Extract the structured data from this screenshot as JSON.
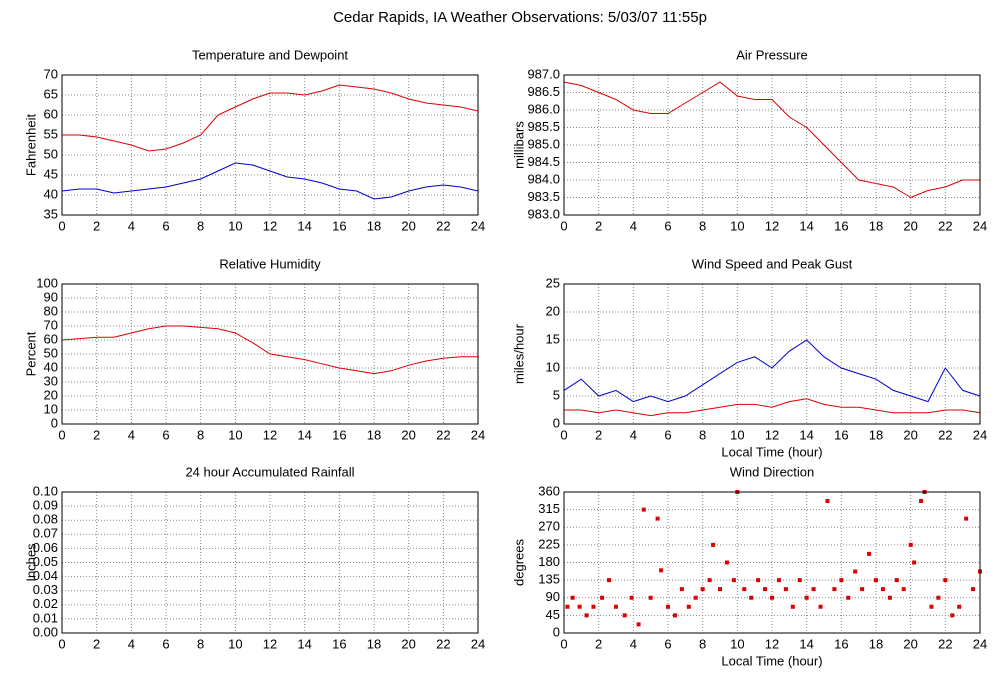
{
  "title": "Cedar Rapids, IA Weather Observations: 5/03/07 11:55p",
  "chart_data": [
    {
      "type": "line",
      "title": "Temperature and Dewpoint",
      "ylabel": "Fahrenheit",
      "x": [
        0,
        1,
        2,
        3,
        4,
        5,
        6,
        7,
        8,
        9,
        10,
        11,
        12,
        13,
        14,
        15,
        16,
        17,
        18,
        19,
        20,
        21,
        22,
        23,
        24
      ],
      "series": [
        {
          "color": "#dd0000",
          "values": [
            55,
            55,
            54.5,
            53.5,
            52.5,
            51,
            51.5,
            53,
            55,
            60,
            62,
            64,
            65.5,
            65.5,
            65,
            66,
            67.5,
            67,
            66.5,
            65.5,
            64,
            63,
            62.5,
            62,
            61
          ]
        },
        {
          "color": "#0000cc",
          "values": [
            41,
            41.5,
            41.5,
            40.5,
            41,
            41.5,
            42,
            43,
            44,
            46,
            48,
            47.5,
            46,
            44.5,
            44,
            43,
            41.5,
            41,
            39,
            39.5,
            41,
            42,
            42.5,
            42,
            41
          ]
        }
      ],
      "xlim": [
        0,
        24
      ],
      "ylim": [
        35,
        70
      ],
      "xticks": [
        0,
        2,
        4,
        6,
        8,
        10,
        12,
        14,
        16,
        18,
        20,
        22,
        24
      ],
      "yticks": [
        35,
        40,
        45,
        50,
        55,
        60,
        65,
        70
      ],
      "grid": true
    },
    {
      "type": "line",
      "title": "Air Pressure",
      "ylabel": "millibars",
      "x": [
        0,
        1,
        2,
        3,
        4,
        5,
        6,
        7,
        8,
        9,
        10,
        11,
        12,
        13,
        14,
        15,
        16,
        17,
        18,
        19,
        20,
        21,
        22,
        23,
        24
      ],
      "series": [
        {
          "color": "#dd0000",
          "values": [
            986.8,
            986.7,
            986.5,
            986.3,
            986.0,
            985.9,
            985.9,
            986.2,
            986.5,
            986.8,
            986.4,
            986.3,
            986.3,
            985.8,
            985.5,
            985.0,
            984.5,
            984.0,
            983.9,
            983.8,
            983.5,
            983.7,
            983.8,
            984.0,
            984.0
          ]
        }
      ],
      "xlim": [
        0,
        24
      ],
      "ylim": [
        983,
        987
      ],
      "xticks": [
        0,
        2,
        4,
        6,
        8,
        10,
        12,
        14,
        16,
        18,
        20,
        22,
        24
      ],
      "yticks": [
        {
          "value": 983,
          "label": "983.0"
        },
        983.5,
        {
          "value": 984,
          "label": "984.0"
        },
        984.5,
        {
          "value": 985,
          "label": "985.0"
        },
        985.5,
        {
          "value": 986,
          "label": "986.0"
        },
        986.5,
        {
          "value": 987,
          "label": "987.0"
        }
      ],
      "grid": true
    },
    {
      "type": "line",
      "title": "Relative Humidity",
      "ylabel": "Percent",
      "x": [
        0,
        1,
        2,
        3,
        4,
        5,
        6,
        7,
        8,
        9,
        10,
        11,
        12,
        13,
        14,
        15,
        16,
        17,
        18,
        19,
        20,
        21,
        22,
        23,
        24
      ],
      "series": [
        {
          "color": "#dd0000",
          "values": [
            60,
            61,
            62,
            62,
            65,
            68,
            70,
            70,
            69,
            68,
            65,
            58,
            50,
            48,
            46,
            43,
            40,
            38,
            36,
            38,
            42,
            45,
            47,
            48,
            48
          ]
        }
      ],
      "xlim": [
        0,
        24
      ],
      "ylim": [
        0,
        100
      ],
      "xticks": [
        0,
        2,
        4,
        6,
        8,
        10,
        12,
        14,
        16,
        18,
        20,
        22,
        24
      ],
      "yticks": [
        0,
        10,
        20,
        30,
        40,
        50,
        60,
        70,
        80,
        90,
        100
      ],
      "grid": true
    },
    {
      "type": "line",
      "title": "Wind Speed and Peak Gust",
      "ylabel": "miles/hour",
      "xlabel": "Local Time (hour)",
      "x": [
        0,
        1,
        2,
        3,
        4,
        5,
        6,
        7,
        8,
        9,
        10,
        11,
        12,
        13,
        14,
        15,
        16,
        17,
        18,
        19,
        20,
        21,
        22,
        23,
        24
      ],
      "series": [
        {
          "color": "#0000cc",
          "values": [
            6,
            8,
            5,
            6,
            4,
            5,
            4,
            5,
            7,
            9,
            11,
            12,
            10,
            13,
            15,
            12,
            10,
            9,
            8,
            6,
            5,
            4,
            10,
            6,
            5
          ]
        },
        {
          "color": "#dd0000",
          "values": [
            2.5,
            2.5,
            2,
            2.5,
            2,
            1.5,
            2,
            2,
            2.5,
            3,
            3.5,
            3.5,
            3,
            4,
            4.5,
            3.5,
            3,
            3,
            2.5,
            2,
            2,
            2,
            2.5,
            2.5,
            2
          ]
        }
      ],
      "xlim": [
        0,
        24
      ],
      "ylim": [
        0,
        25
      ],
      "xticks": [
        0,
        2,
        4,
        6,
        8,
        10,
        12,
        14,
        16,
        18,
        20,
        22,
        24
      ],
      "yticks": [
        0,
        5,
        10,
        15,
        20,
        25
      ],
      "grid": true
    },
    {
      "type": "line",
      "title": "24 hour Accumulated Rainfall",
      "ylabel": "Inches",
      "x": [
        0,
        24
      ],
      "series": [
        {
          "color": "#dd0000",
          "values": [
            0,
            0
          ]
        }
      ],
      "xlim": [
        0,
        24
      ],
      "ylim": [
        0,
        0.1
      ],
      "xticks": [
        0,
        2,
        4,
        6,
        8,
        10,
        12,
        14,
        16,
        18,
        20,
        22,
        24
      ],
      "yticks": [
        {
          "value": 0,
          "label": "0.00"
        },
        0.01,
        0.02,
        0.03,
        0.04,
        0.05,
        0.06,
        0.07,
        0.08,
        0.09,
        {
          "value": 0.1,
          "label": "0.10"
        }
      ],
      "grid": true
    },
    {
      "type": "scatter",
      "title": "Wind Direction",
      "ylabel": "degrees",
      "xlabel": "Local Time (hour)",
      "x": [
        0.2,
        0.5,
        0.9,
        1.3,
        1.7,
        2.2,
        2.6,
        3.0,
        3.5,
        3.9,
        4.3,
        4.6,
        5.0,
        5.4,
        5.6,
        6.0,
        6.4,
        6.8,
        7.2,
        7.6,
        8.0,
        8.4,
        8.6,
        9.0,
        9.4,
        9.8,
        10.0,
        10.4,
        10.8,
        11.2,
        11.6,
        12.0,
        12.4,
        12.8,
        13.2,
        13.6,
        14.0,
        14.4,
        14.8,
        15.2,
        15.6,
        16.0,
        16.4,
        16.8,
        17.2,
        17.6,
        18.0,
        18.4,
        18.8,
        19.2,
        19.6,
        20.0,
        20.2,
        20.6,
        20.8,
        21.2,
        21.6,
        22.0,
        22.4,
        22.8,
        23.2,
        23.6,
        24.0
      ],
      "series": [
        {
          "color": "#dd0000",
          "values": [
            67,
            90,
            67,
            45,
            67,
            90,
            135,
            67,
            45,
            90,
            22,
            315,
            90,
            292,
            160,
            67,
            45,
            112,
            67,
            90,
            112,
            135,
            225,
            112,
            180,
            135,
            360,
            112,
            90,
            135,
            112,
            90,
            135,
            112,
            67,
            135,
            90,
            112,
            67,
            337,
            112,
            135,
            90,
            157,
            112,
            202,
            135,
            112,
            90,
            135,
            112,
            225,
            180,
            337,
            360,
            67,
            90,
            135,
            45,
            67,
            292,
            112,
            157
          ]
        }
      ],
      "xlim": [
        0,
        24
      ],
      "ylim": [
        0,
        360
      ],
      "xticks": [
        0,
        2,
        4,
        6,
        8,
        10,
        12,
        14,
        16,
        18,
        20,
        22,
        24
      ],
      "yticks": [
        0,
        45,
        90,
        135,
        180,
        225,
        270,
        315,
        360
      ],
      "grid": true
    }
  ]
}
